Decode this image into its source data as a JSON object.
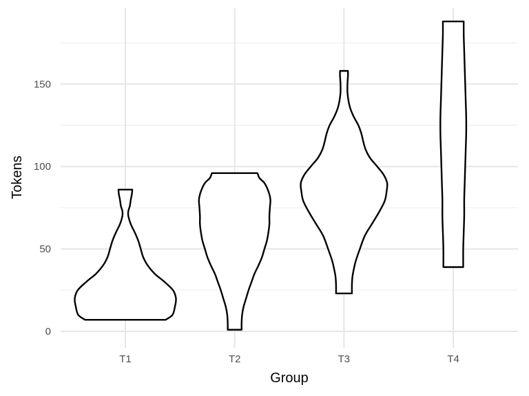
{
  "chart_data": {
    "type": "violin",
    "title": "",
    "xlabel": "Group",
    "ylabel": "Tokens",
    "categories": [
      "T1",
      "T2",
      "T3",
      "T4"
    ],
    "ylim": [
      -10,
      196
    ],
    "y_ticks": [
      0,
      50,
      100,
      150
    ],
    "y_tick_labels": [
      "0",
      "50",
      "100",
      "150"
    ],
    "grid": true,
    "series": [
      {
        "category": "T1",
        "min": 7,
        "max": 86,
        "profile": [
          [
            7,
            0.81
          ],
          [
            10,
            0.95
          ],
          [
            15,
            1.0
          ],
          [
            20,
            1.02
          ],
          [
            25,
            0.96
          ],
          [
            30,
            0.79
          ],
          [
            35,
            0.59
          ],
          [
            40,
            0.45
          ],
          [
            45,
            0.36
          ],
          [
            50,
            0.31
          ],
          [
            55,
            0.26
          ],
          [
            60,
            0.19
          ],
          [
            65,
            0.11
          ],
          [
            70,
            0.06
          ],
          [
            73,
            0.06
          ],
          [
            76,
            0.09
          ],
          [
            80,
            0.11
          ],
          [
            83,
            0.13
          ],
          [
            86,
            0.14
          ]
        ]
      },
      {
        "category": "T2",
        "min": 1,
        "max": 96,
        "profile": [
          [
            1,
            0.14
          ],
          [
            5,
            0.14
          ],
          [
            10,
            0.15
          ],
          [
            15,
            0.18
          ],
          [
            20,
            0.23
          ],
          [
            25,
            0.28
          ],
          [
            30,
            0.34
          ],
          [
            35,
            0.4
          ],
          [
            40,
            0.48
          ],
          [
            45,
            0.55
          ],
          [
            50,
            0.6
          ],
          [
            55,
            0.65
          ],
          [
            60,
            0.68
          ],
          [
            65,
            0.7
          ],
          [
            70,
            0.7
          ],
          [
            75,
            0.71
          ],
          [
            80,
            0.72
          ],
          [
            85,
            0.68
          ],
          [
            90,
            0.6
          ],
          [
            93,
            0.5
          ],
          [
            96,
            0.46
          ]
        ]
      },
      {
        "category": "T3",
        "min": 23,
        "max": 158,
        "profile": [
          [
            23,
            0.16
          ],
          [
            28,
            0.16
          ],
          [
            33,
            0.17
          ],
          [
            38,
            0.2
          ],
          [
            43,
            0.24
          ],
          [
            50,
            0.32
          ],
          [
            58,
            0.42
          ],
          [
            65,
            0.56
          ],
          [
            72,
            0.7
          ],
          [
            79,
            0.82
          ],
          [
            85,
            0.86
          ],
          [
            90,
            0.87
          ],
          [
            95,
            0.8
          ],
          [
            100,
            0.67
          ],
          [
            105,
            0.53
          ],
          [
            110,
            0.44
          ],
          [
            115,
            0.39
          ],
          [
            120,
            0.35
          ],
          [
            125,
            0.29
          ],
          [
            130,
            0.2
          ],
          [
            135,
            0.13
          ],
          [
            140,
            0.09
          ],
          [
            145,
            0.07
          ],
          [
            150,
            0.07
          ],
          [
            155,
            0.08
          ],
          [
            158,
            0.08
          ]
        ]
      },
      {
        "category": "T4",
        "min": 39,
        "max": 188,
        "profile": [
          [
            39,
            0.2
          ],
          [
            50,
            0.2
          ],
          [
            60,
            0.21
          ],
          [
            70,
            0.22
          ],
          [
            80,
            0.22
          ],
          [
            90,
            0.23
          ],
          [
            100,
            0.24
          ],
          [
            110,
            0.25
          ],
          [
            120,
            0.26
          ],
          [
            130,
            0.26
          ],
          [
            140,
            0.25
          ],
          [
            150,
            0.24
          ],
          [
            160,
            0.23
          ],
          [
            170,
            0.22
          ],
          [
            180,
            0.21
          ],
          [
            188,
            0.21
          ]
        ]
      }
    ]
  }
}
